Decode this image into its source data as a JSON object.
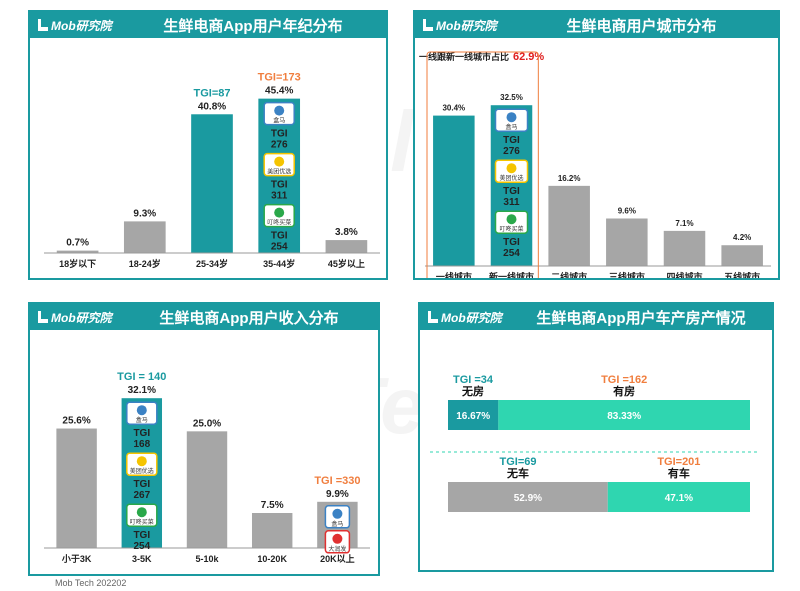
{
  "brand": "Mob研究院",
  "footer": "Mob Tech 202202",
  "watermark": "Mob",
  "colors": {
    "teal": "#1a9aa0",
    "gray": "#a6a6a6",
    "mint": "#2fd6b0",
    "orange": "#f07e3e",
    "red": "#e02020",
    "tgi_teal": "#1a9aa0"
  },
  "panels": {
    "age": {
      "title": "生鲜电商App用户年纪分布",
      "chart_data": {
        "type": "bar",
        "categories": [
          "18岁以下",
          "18-24岁",
          "25-34岁",
          "35-44岁",
          "45岁以上"
        ],
        "values": [
          0.7,
          9.3,
          40.8,
          45.4,
          3.8
        ],
        "value_labels": [
          "0.7%",
          "9.3%",
          "40.8%",
          "45.4%",
          "3.8%"
        ],
        "highlight": [
          2,
          3
        ],
        "ylim": [
          0,
          50
        ],
        "tgi_labels": [
          {
            "index": 2,
            "text": "TGI=87",
            "color": "teal"
          },
          {
            "index": 3,
            "text": "TGI=173",
            "color": "orange"
          }
        ],
        "app_tgi": [
          "TGI\n276",
          "TGI\n311",
          "TGI\n254"
        ]
      }
    },
    "city": {
      "title": "生鲜电商用户城市分布",
      "note_prefix": "一线跟新一线城市占比",
      "note_value": "62.9%",
      "chart_data": {
        "type": "bar",
        "categories": [
          "一线城市",
          "新一线城市",
          "二线城市",
          "三线城市",
          "四线城市",
          "五线城市"
        ],
        "values": [
          30.4,
          32.5,
          16.2,
          9.6,
          7.1,
          4.2
        ],
        "value_labels": [
          "30.4%",
          "32.5%",
          "16.2%",
          "9.6%",
          "7.1%",
          "4.2%"
        ],
        "highlight": [
          0,
          1
        ],
        "ylim": [
          0,
          38
        ],
        "app_tgi": [
          "TGI\n276",
          "TGI\n311",
          "TGI\n254"
        ]
      }
    },
    "income": {
      "title": "生鲜电商App用户收入分布",
      "chart_data": {
        "type": "bar",
        "categories": [
          "小于3K",
          "3-5K",
          "5-10k",
          "10-20K",
          "20K以上"
        ],
        "values": [
          25.6,
          32.1,
          25.0,
          7.5,
          9.9
        ],
        "value_labels": [
          "25.6%",
          "32.1%",
          "25.0%",
          "7.5%",
          "9.9%"
        ],
        "highlight": [
          1
        ],
        "ylim": [
          0,
          36
        ],
        "tgi_labels": [
          {
            "index": 1,
            "text": "TGI = 140",
            "color": "teal"
          },
          {
            "index": 4,
            "text": "TGI =330",
            "color": "orange"
          }
        ],
        "app_tgi": [
          "TGI\n168",
          "TGI\n267",
          "TGI\n254"
        ]
      }
    },
    "assets": {
      "title": "生鲜电商App用户车产房产情况",
      "chart_data": {
        "type": "bar",
        "orientation": "horizontal-stacked",
        "rows": [
          {
            "segments": [
              {
                "label": "无房",
                "value": 16.67,
                "text": "16.67%",
                "tgi": "TGI =34",
                "color": "teal"
              },
              {
                "label": "有房",
                "value": 83.33,
                "text": "83.33%",
                "tgi": "TGI =162",
                "color": "mint"
              }
            ]
          },
          {
            "segments": [
              {
                "label": "无车",
                "value": 52.9,
                "text": "52.9%",
                "tgi": "TGI=69",
                "color": "gray"
              },
              {
                "label": "有车",
                "value": 47.1,
                "text": "47.1%",
                "tgi": "TGI=201",
                "color": "mint"
              }
            ]
          }
        ]
      }
    }
  },
  "apps": [
    {
      "name": "盒马",
      "label": "盒马",
      "color": "#3b82c4"
    },
    {
      "name": "美团优选",
      "label": "美团优选",
      "color": "#f5c400"
    },
    {
      "name": "叮咚买菜",
      "label": "叮咚买菜",
      "color": "#2aa84a"
    },
    {
      "name": "大润发优鲜",
      "label": "大润发\n优鲜",
      "color": "#e03030"
    }
  ]
}
